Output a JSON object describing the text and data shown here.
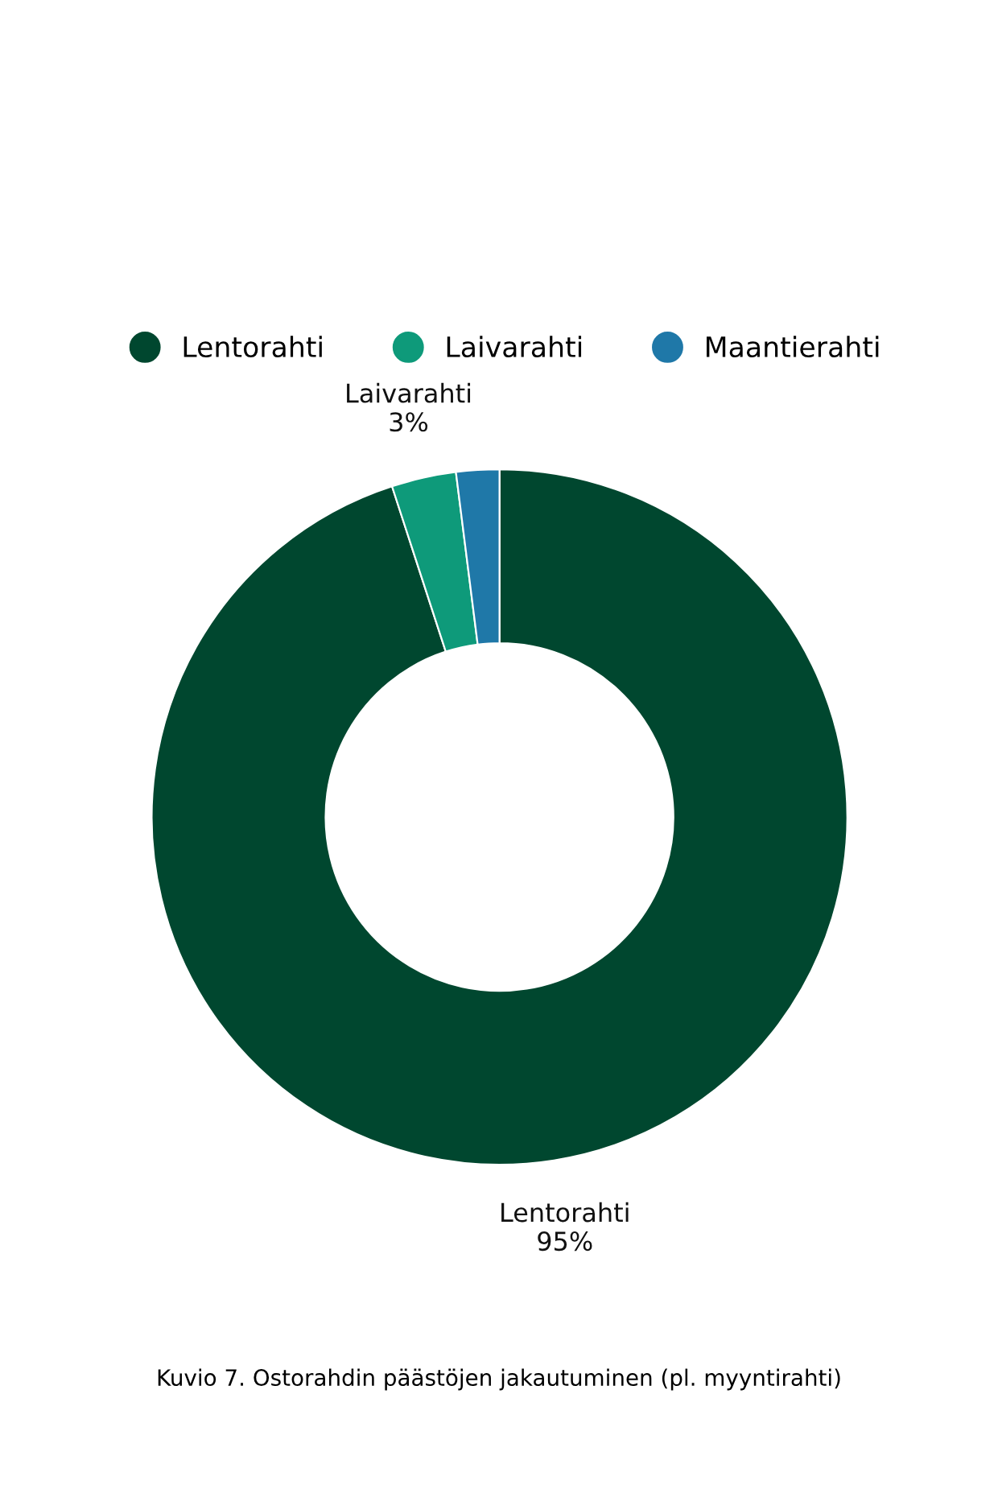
{
  "chart_data": {
    "type": "donut",
    "categories": [
      "Lentorahti",
      "Laivarahti",
      "Maantierahti"
    ],
    "values": [
      95,
      3,
      2
    ],
    "colors": [
      "#00472f",
      "#0e9a7a",
      "#1f78a8"
    ],
    "value_labels": [
      "Lentorahti\n95%",
      "Laivarahti\n3%",
      null
    ],
    "legend": "top",
    "annotations": [
      "Kuvio 7. Ostorahdin päästöjen jakautuminen (pl. myyntirahti)"
    ]
  }
}
